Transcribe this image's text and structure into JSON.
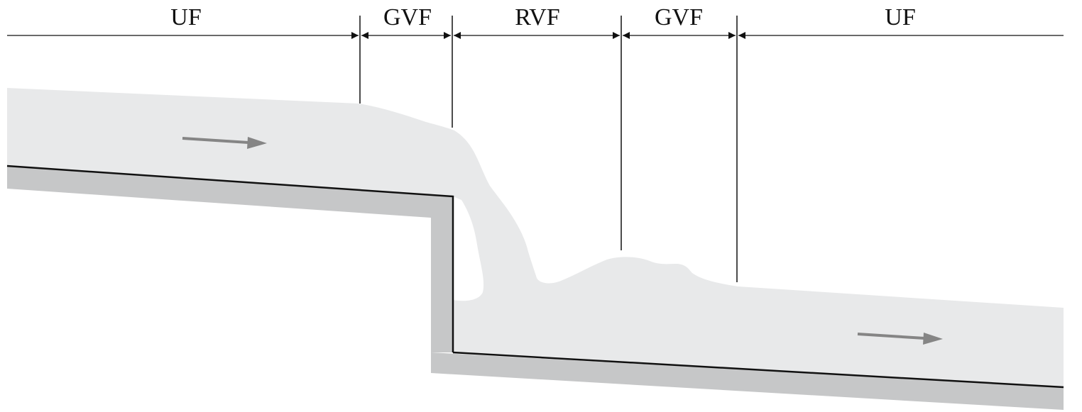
{
  "diagram": {
    "regions": [
      {
        "label": "UF"
      },
      {
        "label": "GVF"
      },
      {
        "label": "RVF"
      },
      {
        "label": "GVF"
      },
      {
        "label": "UF"
      }
    ],
    "colors": {
      "water": "#e8e9ea",
      "channel_bed": "#c6c7c8",
      "line": "#111111",
      "flow_arrow": "#858585"
    },
    "flow_direction": "left-to-right"
  }
}
